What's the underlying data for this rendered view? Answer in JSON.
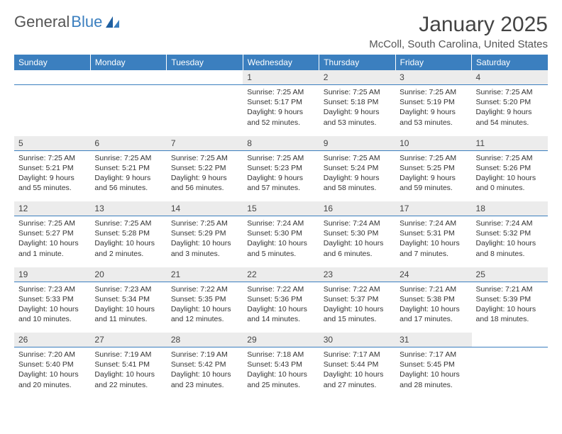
{
  "logo": {
    "text1": "General",
    "text2": "Blue"
  },
  "title": "January 2025",
  "location": "McColl, South Carolina, United States",
  "colors": {
    "header_bg": "#3b7fbf",
    "header_text": "#ffffff",
    "daynum_bg": "#ececec",
    "border": "#3b7fbf",
    "body_text": "#333333",
    "title_text": "#444444"
  },
  "day_headers": [
    "Sunday",
    "Monday",
    "Tuesday",
    "Wednesday",
    "Thursday",
    "Friday",
    "Saturday"
  ],
  "weeks": [
    [
      {
        "n": "",
        "d": ""
      },
      {
        "n": "",
        "d": ""
      },
      {
        "n": "",
        "d": ""
      },
      {
        "n": "1",
        "d": "Sunrise: 7:25 AM\nSunset: 5:17 PM\nDaylight: 9 hours and 52 minutes."
      },
      {
        "n": "2",
        "d": "Sunrise: 7:25 AM\nSunset: 5:18 PM\nDaylight: 9 hours and 53 minutes."
      },
      {
        "n": "3",
        "d": "Sunrise: 7:25 AM\nSunset: 5:19 PM\nDaylight: 9 hours and 53 minutes."
      },
      {
        "n": "4",
        "d": "Sunrise: 7:25 AM\nSunset: 5:20 PM\nDaylight: 9 hours and 54 minutes."
      }
    ],
    [
      {
        "n": "5",
        "d": "Sunrise: 7:25 AM\nSunset: 5:21 PM\nDaylight: 9 hours and 55 minutes."
      },
      {
        "n": "6",
        "d": "Sunrise: 7:25 AM\nSunset: 5:21 PM\nDaylight: 9 hours and 56 minutes."
      },
      {
        "n": "7",
        "d": "Sunrise: 7:25 AM\nSunset: 5:22 PM\nDaylight: 9 hours and 56 minutes."
      },
      {
        "n": "8",
        "d": "Sunrise: 7:25 AM\nSunset: 5:23 PM\nDaylight: 9 hours and 57 minutes."
      },
      {
        "n": "9",
        "d": "Sunrise: 7:25 AM\nSunset: 5:24 PM\nDaylight: 9 hours and 58 minutes."
      },
      {
        "n": "10",
        "d": "Sunrise: 7:25 AM\nSunset: 5:25 PM\nDaylight: 9 hours and 59 minutes."
      },
      {
        "n": "11",
        "d": "Sunrise: 7:25 AM\nSunset: 5:26 PM\nDaylight: 10 hours and 0 minutes."
      }
    ],
    [
      {
        "n": "12",
        "d": "Sunrise: 7:25 AM\nSunset: 5:27 PM\nDaylight: 10 hours and 1 minute."
      },
      {
        "n": "13",
        "d": "Sunrise: 7:25 AM\nSunset: 5:28 PM\nDaylight: 10 hours and 2 minutes."
      },
      {
        "n": "14",
        "d": "Sunrise: 7:25 AM\nSunset: 5:29 PM\nDaylight: 10 hours and 3 minutes."
      },
      {
        "n": "15",
        "d": "Sunrise: 7:24 AM\nSunset: 5:30 PM\nDaylight: 10 hours and 5 minutes."
      },
      {
        "n": "16",
        "d": "Sunrise: 7:24 AM\nSunset: 5:30 PM\nDaylight: 10 hours and 6 minutes."
      },
      {
        "n": "17",
        "d": "Sunrise: 7:24 AM\nSunset: 5:31 PM\nDaylight: 10 hours and 7 minutes."
      },
      {
        "n": "18",
        "d": "Sunrise: 7:24 AM\nSunset: 5:32 PM\nDaylight: 10 hours and 8 minutes."
      }
    ],
    [
      {
        "n": "19",
        "d": "Sunrise: 7:23 AM\nSunset: 5:33 PM\nDaylight: 10 hours and 10 minutes."
      },
      {
        "n": "20",
        "d": "Sunrise: 7:23 AM\nSunset: 5:34 PM\nDaylight: 10 hours and 11 minutes."
      },
      {
        "n": "21",
        "d": "Sunrise: 7:22 AM\nSunset: 5:35 PM\nDaylight: 10 hours and 12 minutes."
      },
      {
        "n": "22",
        "d": "Sunrise: 7:22 AM\nSunset: 5:36 PM\nDaylight: 10 hours and 14 minutes."
      },
      {
        "n": "23",
        "d": "Sunrise: 7:22 AM\nSunset: 5:37 PM\nDaylight: 10 hours and 15 minutes."
      },
      {
        "n": "24",
        "d": "Sunrise: 7:21 AM\nSunset: 5:38 PM\nDaylight: 10 hours and 17 minutes."
      },
      {
        "n": "25",
        "d": "Sunrise: 7:21 AM\nSunset: 5:39 PM\nDaylight: 10 hours and 18 minutes."
      }
    ],
    [
      {
        "n": "26",
        "d": "Sunrise: 7:20 AM\nSunset: 5:40 PM\nDaylight: 10 hours and 20 minutes."
      },
      {
        "n": "27",
        "d": "Sunrise: 7:19 AM\nSunset: 5:41 PM\nDaylight: 10 hours and 22 minutes."
      },
      {
        "n": "28",
        "d": "Sunrise: 7:19 AM\nSunset: 5:42 PM\nDaylight: 10 hours and 23 minutes."
      },
      {
        "n": "29",
        "d": "Sunrise: 7:18 AM\nSunset: 5:43 PM\nDaylight: 10 hours and 25 minutes."
      },
      {
        "n": "30",
        "d": "Sunrise: 7:17 AM\nSunset: 5:44 PM\nDaylight: 10 hours and 27 minutes."
      },
      {
        "n": "31",
        "d": "Sunrise: 7:17 AM\nSunset: 5:45 PM\nDaylight: 10 hours and 28 minutes."
      },
      {
        "n": "",
        "d": ""
      }
    ]
  ]
}
